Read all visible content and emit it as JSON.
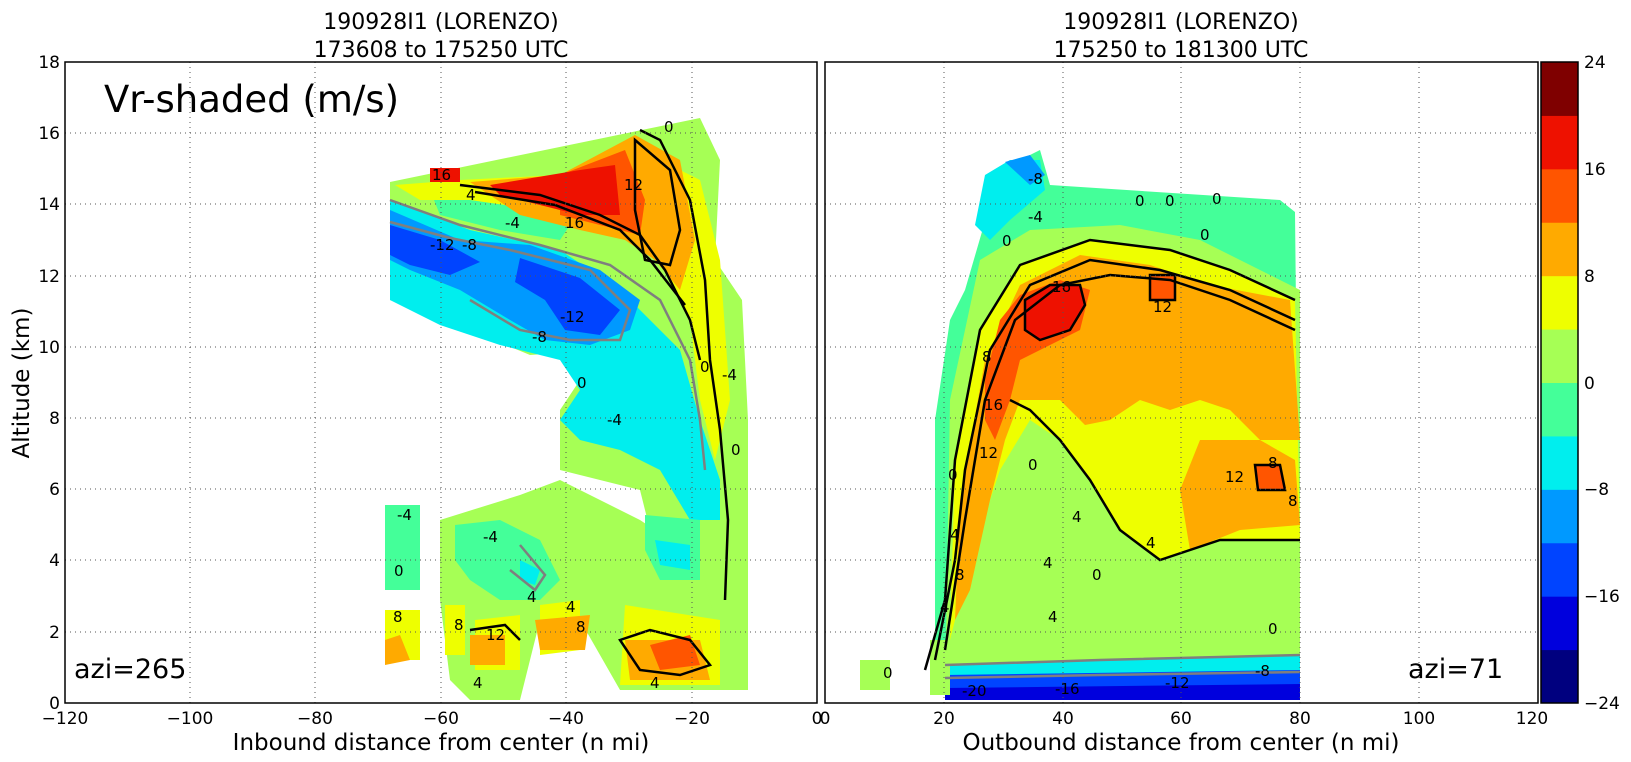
{
  "chart_data": [
    {
      "type": "heatmap",
      "panel": "left",
      "title_line1": "190928I1 (LORENZO)",
      "title_line2": "173608 to 175250 UTC",
      "xlabel": "Inbound distance from center (n mi)",
      "ylabel": "Altitude (km)",
      "xlim": [
        -120,
        0
      ],
      "ylim": [
        0,
        18
      ],
      "xticks": [
        "−120",
        "−100",
        "−80",
        "−60",
        "−40",
        "−20",
        "0"
      ],
      "yticks": [
        "0",
        "2",
        "4",
        "6",
        "8",
        "10",
        "12",
        "14",
        "16",
        "18"
      ],
      "grid": true,
      "annotation": "Vr-shaded (m/s)",
      "azimuth_label": "azi=265",
      "contour_labels": [
        "16",
        "8",
        "4",
        "-4",
        "-8",
        "16",
        "12",
        "-12",
        "-8",
        "-12",
        "-8",
        "0",
        "-4",
        "0",
        "-4",
        "0",
        "-4",
        "0",
        "-4",
        "0",
        "-4",
        "4",
        "8",
        "8",
        "12",
        "4",
        "8",
        "4",
        "4"
      ]
    },
    {
      "type": "heatmap",
      "panel": "right",
      "title_line1": "190928I1 (LORENZO)",
      "title_line2": "175250 to 181300 UTC",
      "xlabel": "Outbound distance from center (n mi)",
      "xlim": [
        0,
        120
      ],
      "ylim": [
        0,
        18
      ],
      "xticks": [
        "0",
        "20",
        "40",
        "60",
        "80",
        "100",
        "120"
      ],
      "grid": true,
      "azimuth_label": "azi=71",
      "contour_labels": [
        "-8",
        "-4",
        "0",
        "0",
        "0",
        "0",
        "0",
        "16",
        "12",
        "8",
        "16",
        "12",
        "0",
        "4",
        "0",
        "4",
        "0",
        "0",
        "8",
        "12",
        "8",
        "8",
        "4",
        "4",
        "4",
        "0",
        "4",
        "-4",
        "0",
        "-8",
        "-12",
        "-16",
        "-20",
        "12",
        "8"
      ]
    }
  ],
  "colorbar": {
    "levels": [
      -24,
      -20,
      -16,
      -12,
      -8,
      -4,
      0,
      4,
      8,
      12,
      16,
      20,
      24
    ],
    "colors": [
      "#00007f",
      "#0000dd",
      "#0044ff",
      "#0099ff",
      "#00eeee",
      "#44ff99",
      "#a6ff55",
      "#eeff00",
      "#ffaa00",
      "#ff5500",
      "#ee1100",
      "#7f0000"
    ],
    "tick_labels": [
      "24",
      "16",
      "8",
      "0",
      "−8",
      "−16",
      "−24"
    ]
  }
}
